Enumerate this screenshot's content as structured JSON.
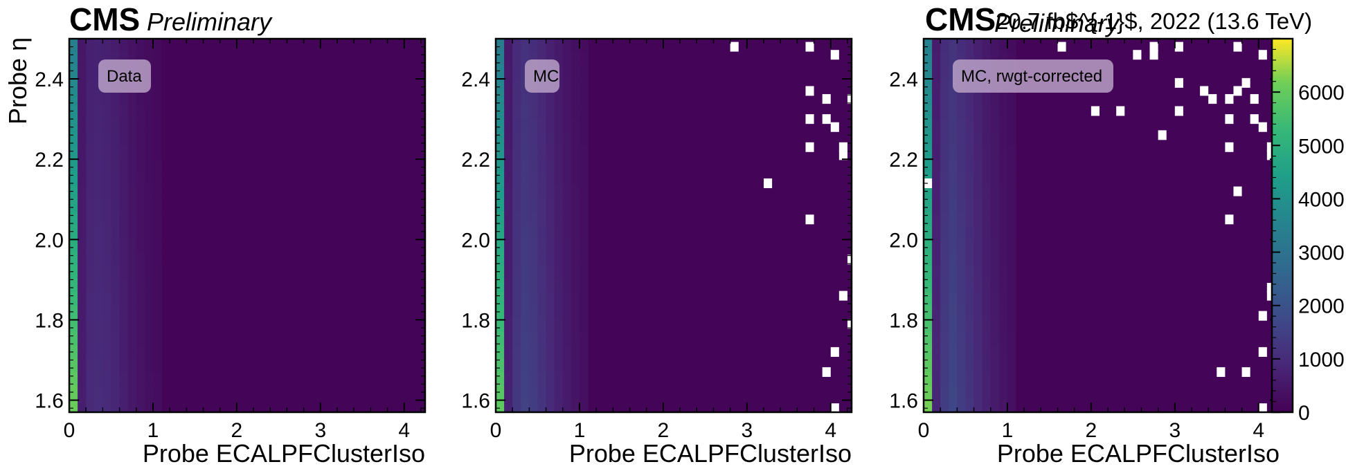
{
  "experiment": "CMS",
  "status": "Preliminary",
  "lumi_label": "20.7 fb$^{-1}$, 2022 (13.6 TeV)",
  "colors": {
    "viridis_low": "#440154",
    "viridis_high": "#fde725",
    "label_box": "#b8a0c6",
    "missing_bin": "#ffffff"
  },
  "chart_data": [
    {
      "type": "heatmap",
      "label": "Data",
      "xlabel": "Probe ECALPFClusterIso",
      "ylabel": "Probe η",
      "xlim": [
        0,
        4.25
      ],
      "ylim": [
        1.57,
        2.5
      ],
      "x_ticks": [
        "0",
        "1",
        "2",
        "3",
        "4"
      ],
      "y_ticks": [
        "1.6",
        "1.8",
        "2.0",
        "2.2",
        "2.4"
      ],
      "bin_width": 0.1,
      "column_intensity_first_bins": [
        {
          "x": 0.0,
          "value": 6200
        },
        {
          "x": 0.1,
          "value": 600
        },
        {
          "x": 0.2,
          "value": 900
        },
        {
          "x": 0.3,
          "value": 950
        },
        {
          "x": 0.4,
          "value": 900
        },
        {
          "x": 0.5,
          "value": 800
        },
        {
          "x": 0.6,
          "value": 650
        },
        {
          "x": 0.7,
          "value": 500
        },
        {
          "x": 0.8,
          "value": 400
        },
        {
          "x": 0.9,
          "value": 320
        },
        {
          "x": 1.0,
          "value": 250
        }
      ],
      "empty_bins": []
    },
    {
      "type": "heatmap",
      "label": "MC",
      "xlabel": "Probe ECALPFClusterIso",
      "xlim": [
        0,
        4.25
      ],
      "ylim": [
        1.57,
        2.5
      ],
      "x_ticks": [
        "0",
        "1",
        "2",
        "3",
        "4"
      ],
      "y_ticks": [
        "1.6",
        "1.8",
        "2.0",
        "2.2",
        "2.4"
      ],
      "bin_width": 0.1,
      "column_intensity_first_bins": [
        {
          "x": 0.0,
          "value": 6000
        },
        {
          "x": 0.1,
          "value": 700
        },
        {
          "x": 0.2,
          "value": 1200
        },
        {
          "x": 0.3,
          "value": 1400
        },
        {
          "x": 0.4,
          "value": 1300
        },
        {
          "x": 0.5,
          "value": 1100
        },
        {
          "x": 0.6,
          "value": 900
        },
        {
          "x": 0.7,
          "value": 700
        },
        {
          "x": 0.8,
          "value": 550
        },
        {
          "x": 0.9,
          "value": 420
        },
        {
          "x": 1.0,
          "value": 330
        }
      ],
      "empty_bins": [
        [
          2.85,
          2.48
        ],
        [
          3.75,
          2.48
        ],
        [
          4.05,
          2.46
        ],
        [
          3.75,
          2.37
        ],
        [
          3.95,
          2.35
        ],
        [
          4.25,
          2.35
        ],
        [
          3.75,
          2.3
        ],
        [
          3.95,
          2.3
        ],
        [
          4.05,
          2.28
        ],
        [
          3.75,
          2.23
        ],
        [
          4.15,
          2.23
        ],
        [
          4.15,
          2.21
        ],
        [
          3.25,
          2.14
        ],
        [
          3.75,
          2.05
        ],
        [
          4.25,
          1.95
        ],
        [
          4.15,
          1.86
        ],
        [
          4.25,
          1.79
        ],
        [
          4.05,
          1.72
        ],
        [
          3.95,
          1.67
        ],
        [
          4.05,
          1.58
        ]
      ]
    },
    {
      "type": "heatmap",
      "label": "MC, rwgt-corrected",
      "xlabel": "Probe ECALPFClusterIso",
      "xlim": [
        0,
        4.25
      ],
      "ylim": [
        1.57,
        2.5
      ],
      "x_ticks": [
        "0",
        "1",
        "2",
        "3",
        "4"
      ],
      "y_ticks": [
        "1.6",
        "1.8",
        "2.0",
        "2.2",
        "2.4"
      ],
      "bin_width": 0.1,
      "column_intensity_first_bins": [
        {
          "x": 0.0,
          "value": 6300
        },
        {
          "x": 0.1,
          "value": 800
        },
        {
          "x": 0.2,
          "value": 1300
        },
        {
          "x": 0.3,
          "value": 1500
        },
        {
          "x": 0.4,
          "value": 1300
        },
        {
          "x": 0.5,
          "value": 1100
        },
        {
          "x": 0.6,
          "value": 900
        },
        {
          "x": 0.7,
          "value": 700
        },
        {
          "x": 0.8,
          "value": 550
        },
        {
          "x": 0.9,
          "value": 420
        },
        {
          "x": 1.0,
          "value": 330
        }
      ],
      "empty_bins": [
        [
          1.65,
          2.48
        ],
        [
          2.55,
          2.46
        ],
        [
          2.75,
          2.48
        ],
        [
          2.75,
          2.46
        ],
        [
          3.05,
          2.48
        ],
        [
          3.75,
          2.48
        ],
        [
          4.05,
          2.46
        ],
        [
          3.05,
          2.39
        ],
        [
          3.85,
          2.39
        ],
        [
          3.35,
          2.37
        ],
        [
          3.45,
          2.35
        ],
        [
          3.65,
          2.35
        ],
        [
          3.75,
          2.37
        ],
        [
          3.95,
          2.35
        ],
        [
          4.25,
          2.35
        ],
        [
          2.05,
          2.32
        ],
        [
          2.35,
          2.32
        ],
        [
          3.05,
          2.32
        ],
        [
          3.65,
          2.3
        ],
        [
          3.95,
          2.3
        ],
        [
          4.05,
          2.28
        ],
        [
          2.85,
          2.26
        ],
        [
          3.65,
          2.23
        ],
        [
          4.15,
          2.23
        ],
        [
          4.15,
          2.21
        ],
        [
          0.05,
          2.14
        ],
        [
          3.75,
          2.12
        ],
        [
          3.65,
          2.05
        ],
        [
          4.25,
          1.95
        ],
        [
          4.15,
          1.88
        ],
        [
          4.15,
          1.86
        ],
        [
          4.05,
          1.81
        ],
        [
          4.25,
          1.79
        ],
        [
          4.05,
          1.72
        ],
        [
          3.55,
          1.67
        ],
        [
          3.85,
          1.67
        ],
        [
          4.05,
          1.58
        ]
      ]
    }
  ],
  "colorbar": {
    "range": [
      0,
      7000
    ],
    "ticks": [
      "0",
      "1000",
      "2000",
      "3000",
      "4000",
      "5000",
      "6000"
    ]
  }
}
